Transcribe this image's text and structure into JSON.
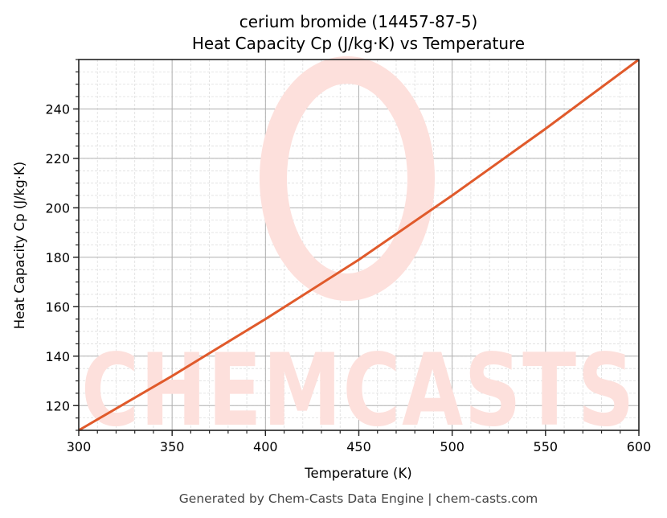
{
  "chart_data": {
    "type": "line",
    "title": "cerium bromide (14457-87-5)",
    "subtitle": "Heat Capacity Cp (J/kg·K) vs Temperature",
    "xlabel": "Temperature (K)",
    "ylabel": "Heat Capacity Cp (J/kg·K)",
    "xlim": [
      300,
      600
    ],
    "ylim": [
      110,
      260
    ],
    "x_ticks": [
      300,
      350,
      400,
      450,
      500,
      550,
      600
    ],
    "y_ticks": [
      120,
      140,
      160,
      180,
      200,
      220,
      240
    ],
    "x_minor_step": 10,
    "y_minor_step": 5,
    "grid": true,
    "legend": null,
    "series": [
      {
        "name": "Heat Capacity Cp",
        "color": "#e05a2b",
        "x": [
          300,
          350,
          400,
          450,
          500,
          550,
          600
        ],
        "y": [
          110,
          132,
          155,
          179,
          205,
          232,
          260
        ]
      }
    ]
  },
  "watermark": {
    "text": "CHEMCASTS",
    "logo_letter": "C",
    "color": "#fde0dc"
  },
  "footer": "Generated by Chem-Casts Data Engine | chem-casts.com",
  "colors": {
    "line": "#e05a2b",
    "major_grid": "#b0b0b0",
    "minor_grid": "#dddddd",
    "axes": "#222222",
    "watermark": "#fde0dc"
  }
}
